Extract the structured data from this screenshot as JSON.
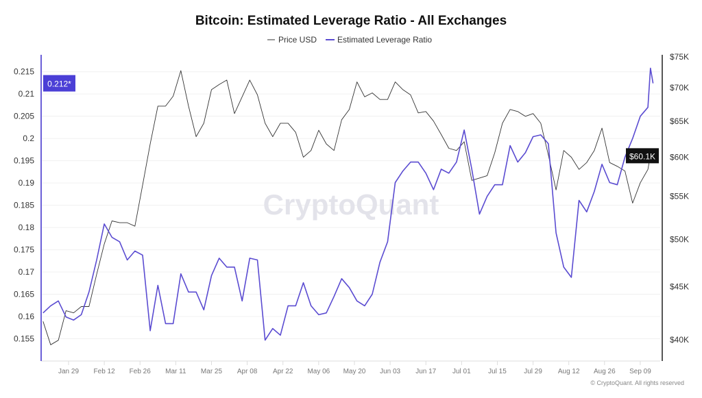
{
  "chart_data": {
    "type": "line",
    "title": "Bitcoin: Estimated Leverage Ratio - All Exchanges",
    "x": [
      "Jan 19",
      "Jan 22",
      "Jan 25",
      "Jan 28",
      "Jan 31",
      "Feb 03",
      "Feb 06",
      "Feb 09",
      "Feb 12",
      "Feb 15",
      "Feb 18",
      "Feb 21",
      "Feb 24",
      "Feb 27",
      "Mar 01",
      "Mar 04",
      "Mar 07",
      "Mar 10",
      "Mar 13",
      "Mar 16",
      "Mar 19",
      "Mar 22",
      "Mar 25",
      "Mar 28",
      "Mar 31",
      "Apr 03",
      "Apr 06",
      "Apr 09",
      "Apr 12",
      "Apr 15",
      "Apr 18",
      "Apr 21",
      "Apr 24",
      "Apr 27",
      "Apr 30",
      "May 03",
      "May 06",
      "May 09",
      "May 12",
      "May 15",
      "May 18",
      "May 21",
      "May 24",
      "May 27",
      "May 30",
      "Jun 02",
      "Jun 05",
      "Jun 08",
      "Jun 11",
      "Jun 14",
      "Jun 17",
      "Jun 20",
      "Jun 23",
      "Jun 26",
      "Jun 29",
      "Jul 02",
      "Jul 05",
      "Jul 08",
      "Jul 11",
      "Jul 14",
      "Jul 17",
      "Jul 20",
      "Jul 23",
      "Jul 26",
      "Jul 29",
      "Aug 01",
      "Aug 04",
      "Aug 07",
      "Aug 10",
      "Aug 13",
      "Aug 16",
      "Aug 19",
      "Aug 22",
      "Aug 25",
      "Aug 28",
      "Aug 31",
      "Sep 03",
      "Sep 06",
      "Sep 09",
      "Sep 12",
      "Sep 13",
      "Sep 14"
    ],
    "series": [
      {
        "name": "Price USD",
        "axis": "right",
        "color": "#333333",
        "values": [
          41600,
          39500,
          39900,
          42600,
          42400,
          43000,
          43000,
          46200,
          49400,
          52000,
          51800,
          51800,
          51400,
          56300,
          61700,
          67100,
          67100,
          68600,
          72600,
          67100,
          62700,
          64600,
          69600,
          70400,
          71100,
          66000,
          68500,
          71100,
          68800,
          64600,
          62700,
          64600,
          64600,
          63300,
          59900,
          60800,
          63600,
          61700,
          60800,
          65100,
          66600,
          70800,
          68500,
          69100,
          68100,
          68100,
          70800,
          69600,
          68800,
          66100,
          66300,
          64900,
          63000,
          61100,
          60800,
          62000,
          56900,
          57200,
          57500,
          60500,
          64600,
          66600,
          66300,
          65600,
          66000,
          64600,
          60200,
          55700,
          60800,
          59900,
          58300,
          59200,
          60800,
          63900,
          59200,
          58700,
          58100,
          54100,
          56600,
          58300,
          60200,
          60100
        ]
      },
      {
        "name": "Estimated Leverage Ratio",
        "axis": "left",
        "color": "#5a4bd1",
        "values": [
          0.1608,
          0.1624,
          0.1635,
          0.1599,
          0.1592,
          0.1604,
          0.1655,
          0.1727,
          0.1808,
          0.1778,
          0.1768,
          0.1727,
          0.1747,
          0.1738,
          0.1568,
          0.167,
          0.1584,
          0.1584,
          0.1696,
          0.1655,
          0.1655,
          0.1615,
          0.1692,
          0.1731,
          0.1711,
          0.1711,
          0.1635,
          0.1731,
          0.1727,
          0.1547,
          0.1573,
          0.1558,
          0.1624,
          0.1624,
          0.1676,
          0.1624,
          0.1604,
          0.1608,
          0.1645,
          0.1685,
          0.1665,
          0.1635,
          0.1624,
          0.165,
          0.1722,
          0.1768,
          0.1901,
          0.1927,
          0.1947,
          0.1947,
          0.1922,
          0.1885,
          0.1931,
          0.1922,
          0.1947,
          0.2019,
          0.1931,
          0.183,
          0.187,
          0.1896,
          0.1896,
          0.1984,
          0.1947,
          0.1968,
          0.2004,
          0.2008,
          0.1988,
          0.1788,
          0.1711,
          0.1688,
          0.1861,
          0.1835,
          0.1881,
          0.1942,
          0.1901,
          0.1896,
          0.1958,
          0.2,
          0.205,
          0.207,
          0.2158,
          0.2124
        ]
      }
    ],
    "x_ticks": [
      "Jan 29",
      "Feb 12",
      "Feb 26",
      "Mar 11",
      "Mar 25",
      "Apr 08",
      "Apr 22",
      "May 06",
      "May 20",
      "Jun 03",
      "Jun 17",
      "Jul 01",
      "Jul 15",
      "Jul 29",
      "Aug 12",
      "Aug 26",
      "Sep 09"
    ],
    "left_axis": {
      "ylim": [
        0.15,
        0.2188
      ],
      "ticks": [
        "0.155",
        "0.16",
        "0.165",
        "0.17",
        "0.175",
        "0.18",
        "0.185",
        "0.19",
        "0.195",
        "0.2",
        "0.205",
        "0.21",
        "0.215"
      ],
      "current_label": "0.212*",
      "current_value": 0.2124,
      "label_color": "#4b3fd6"
    },
    "right_axis": {
      "scale": "log",
      "ylim": [
        38100,
        75200
      ],
      "ticks": [
        "$40K",
        "$45K",
        "$50K",
        "$55K",
        "$60K",
        "$65K",
        "$70K",
        "$75K"
      ],
      "tick_values": [
        40000,
        45000,
        50000,
        55000,
        60000,
        65000,
        70000,
        75000
      ],
      "current_label": "$60.1K",
      "current_value": 60100,
      "label_color": "#111111"
    },
    "grid": true,
    "legend": {
      "placement": "top-center",
      "items": [
        "Price USD",
        "Estimated Leverage Ratio"
      ]
    }
  },
  "watermark": "CryptoQuant",
  "copyright": "© CryptoQuant. All rights reserved"
}
